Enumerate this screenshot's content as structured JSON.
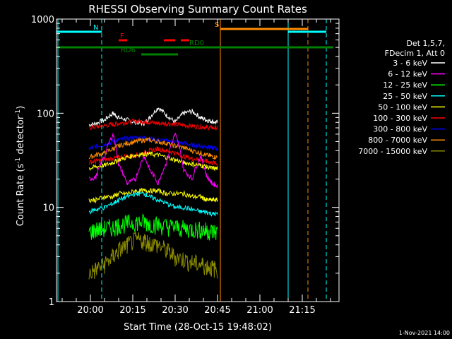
{
  "chart_data": {
    "type": "line",
    "title": "RHESSI Observing Summary Count Rates",
    "xlabel": "Start Time (28-Oct-15 19:48:02)",
    "ylabel_main": "Count Rate (s",
    "ylabel_sup1": "-1",
    "ylabel_mid": " detector",
    "ylabel_sup2": "-1",
    "ylabel_end": ")",
    "y_scale": "log",
    "xlim_minutes": [
      0,
      100
    ],
    "ylim": [
      1,
      1000
    ],
    "x_ticks": [
      {
        "label": "20:00",
        "min": 12
      },
      {
        "label": "20:15",
        "min": 27
      },
      {
        "label": "20:30",
        "min": 42
      },
      {
        "label": "20:45",
        "min": 57
      },
      {
        "label": "21:00",
        "min": 72
      },
      {
        "label": "21:15",
        "min": 87
      }
    ],
    "y_ticks": [
      {
        "label": "1000",
        "v": 1000
      },
      {
        "label": "100",
        "v": 100
      },
      {
        "label": "10",
        "v": 10
      },
      {
        "label": "1",
        "v": 1
      }
    ],
    "legend": {
      "placement": "right",
      "header": [
        "Det 1,5,7,",
        "FDecim 1, Att 0"
      ],
      "entries": [
        {
          "label": "3 - 6 keV",
          "color": "#ffffff"
        },
        {
          "label": "6 - 12 keV",
          "color": "#ff00ff"
        },
        {
          "label": "12 - 25 keV",
          "color": "#00ff00"
        },
        {
          "label": "25 - 50 keV",
          "color": "#00ffff"
        },
        {
          "label": "50 - 100 keV",
          "color": "#ffff00"
        },
        {
          "label": "100 - 300 keV",
          "color": "#ff0000"
        },
        {
          "label": "300 - 800 keV",
          "color": "#0000ff"
        },
        {
          "label": "800 - 7000 keV",
          "color": "#ff8c00"
        },
        {
          "label": "7000 - 15000 keV",
          "color": "#8b8b00"
        }
      ]
    },
    "series": [
      {
        "color": "#000000",
        "x": [
          11.5,
          14,
          17,
          20,
          22,
          25,
          28,
          31,
          33,
          36,
          39,
          42,
          45,
          48,
          51,
          53,
          55,
          57
        ],
        "y": [
          75,
          78,
          85,
          100,
          90,
          85,
          80,
          78,
          90,
          115,
          95,
          80,
          100,
          105,
          90,
          85,
          82,
          80
        ]
      },
      {
        "color": "#ff0000",
        "x": [
          11.5,
          14,
          17,
          20,
          22,
          25,
          28,
          31,
          33,
          36,
          39,
          42,
          45,
          48,
          51,
          53,
          55,
          57
        ],
        "y": [
          70,
          72,
          74,
          76,
          78,
          80,
          82,
          82,
          80,
          78,
          78,
          76,
          75,
          73,
          72,
          71,
          70,
          70
        ]
      },
      {
        "color": "#0000ff",
        "x": [
          11.5,
          14,
          17,
          20,
          22,
          25,
          28,
          31,
          33,
          36,
          39,
          42,
          45,
          48,
          51,
          53,
          55,
          57
        ],
        "y": [
          42,
          44,
          47,
          50,
          52,
          54,
          55,
          55,
          54,
          52,
          51,
          50,
          48,
          46,
          45,
          44,
          43,
          42
        ]
      },
      {
        "color": "#ff8c00",
        "x": [
          11.5,
          14,
          17,
          20,
          22,
          25,
          28,
          31,
          33,
          36,
          39,
          42,
          45,
          48,
          51,
          53,
          55,
          57
        ],
        "y": [
          34,
          36,
          38,
          42,
          45,
          48,
          50,
          52,
          52,
          50,
          48,
          45,
          43,
          40,
          38,
          36,
          35,
          34
        ]
      },
      {
        "color": "#ff0000",
        "x": [
          11.5,
          14,
          17,
          20,
          22,
          25,
          28,
          31,
          33,
          36,
          39,
          42,
          45,
          48,
          51,
          53,
          55,
          57
        ],
        "y": [
          30,
          31,
          32,
          33,
          34,
          35,
          36,
          38,
          40,
          42,
          40,
          38,
          35,
          33,
          32,
          31,
          30,
          29
        ]
      },
      {
        "color": "#ffff00",
        "x": [
          11.5,
          14,
          17,
          20,
          22,
          25,
          28,
          31,
          33,
          36,
          39,
          42,
          45,
          48,
          51,
          53,
          55,
          57
        ],
        "y": [
          26,
          27,
          28,
          30,
          32,
          34,
          36,
          37,
          37,
          36,
          34,
          32,
          30,
          29,
          28,
          27,
          26,
          26
        ]
      },
      {
        "color": "#ff00ff",
        "x": [
          11.5,
          14,
          17,
          20,
          22,
          25,
          28,
          31,
          33,
          36,
          39,
          42,
          45,
          48,
          51,
          53,
          55,
          57
        ],
        "y": [
          20,
          21,
          35,
          60,
          28,
          18,
          20,
          35,
          25,
          18,
          30,
          60,
          25,
          20,
          35,
          22,
          18,
          17
        ]
      },
      {
        "color": "#ffff00",
        "x": [
          11.5,
          14,
          17,
          20,
          22,
          25,
          28,
          31,
          33,
          36,
          39,
          42,
          45,
          48,
          51,
          53,
          55,
          57
        ],
        "y": [
          12,
          12,
          13,
          13,
          14,
          14,
          15,
          15,
          15,
          15,
          14,
          14,
          14,
          13,
          13,
          12,
          12,
          12
        ]
      },
      {
        "color": "#00ffff",
        "x": [
          11.5,
          14,
          17,
          20,
          22,
          25,
          28,
          31,
          33,
          36,
          39,
          42,
          45,
          48,
          51,
          53,
          55,
          57
        ],
        "y": [
          9,
          9.5,
          10,
          11,
          12,
          13,
          14,
          14,
          13,
          12,
          11,
          10,
          10,
          9.5,
          9,
          9,
          8.5,
          8.5
        ]
      },
      {
        "color": "#00ff00",
        "x": [
          11.5,
          14,
          17,
          20,
          22,
          25,
          28,
          31,
          33,
          36,
          39,
          42,
          45,
          48,
          51,
          53,
          55,
          57
        ],
        "y": [
          5.5,
          5.8,
          6,
          6.2,
          6.5,
          6.8,
          7,
          7,
          6.8,
          6.5,
          6.3,
          6.2,
          6,
          5.9,
          5.8,
          5.7,
          5.6,
          5.5
        ]
      },
      {
        "color": "#8b8b00",
        "x": [
          11.5,
          14,
          17,
          20,
          22,
          25,
          28,
          31,
          33,
          36,
          39,
          42,
          45,
          48,
          51,
          53,
          55,
          57
        ],
        "y": [
          2,
          2.2,
          2.5,
          3,
          3.5,
          4,
          4.5,
          4.5,
          4.2,
          4,
          3.5,
          3,
          2.8,
          2.6,
          2.5,
          2.4,
          2.3,
          2.2
        ]
      }
    ],
    "markers": [
      {
        "label": "N",
        "color": "#00ffff",
        "y_frac": 0.955,
        "segments": [
          [
            0,
            16
          ]
        ]
      },
      {
        "label": "",
        "color": "#00ffff",
        "y_frac": 0.955,
        "segments": [
          [
            82,
            95.5
          ]
        ]
      },
      {
        "label": "F",
        "color": "#ff0000",
        "y_frac": 0.925,
        "segments": [
          [
            22,
            25
          ]
        ]
      },
      {
        "label": "",
        "color": "#ff0000",
        "y_frac": 0.925,
        "segments": [
          [
            38,
            42
          ],
          [
            44,
            47
          ]
        ]
      },
      {
        "label": "RD0",
        "color": "#008000",
        "y_frac": 0.9,
        "segments": [
          [
            0,
            98
          ]
        ]
      },
      {
        "label": "RD6",
        "color": "#008000",
        "y_frac": 0.875,
        "segments": [
          [
            30,
            43
          ]
        ]
      },
      {
        "label": "S",
        "color": "#ff8c00",
        "y_frac": 0.965,
        "segments": [
          [
            58,
            89
          ]
        ]
      }
    ],
    "vlines": [
      {
        "min": 0.5,
        "color": "#00ffff",
        "dash": false
      },
      {
        "min": 16,
        "color": "#00ffff",
        "dash": true
      },
      {
        "min": 58,
        "color": "#ff8c00",
        "dash": false
      },
      {
        "min": 82,
        "color": "#00ffff",
        "dash": false
      },
      {
        "min": 89,
        "color": "#ff8c00",
        "dash": true
      },
      {
        "min": 95.5,
        "color": "#00ffff",
        "dash": true
      }
    ],
    "footer": "1-Nov-2021 14:00"
  }
}
